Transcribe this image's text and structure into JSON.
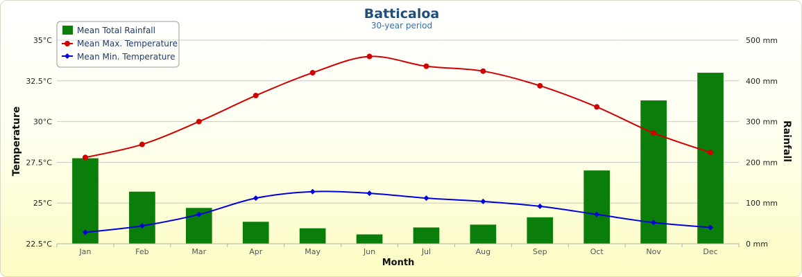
{
  "chart_data": {
    "type": "bar",
    "title": "Batticaloa",
    "subtitle": "30-year period",
    "xlabel": "Month",
    "ylabel_left": "Temperature",
    "ylabel_right": "Rainfall",
    "categories": [
      "Jan",
      "Feb",
      "Mar",
      "Apr",
      "May",
      "Jun",
      "Jul",
      "Aug",
      "Sep",
      "Oct",
      "Nov",
      "Dec"
    ],
    "y_left": {
      "lim": [
        22.5,
        35
      ],
      "ticks": [
        "22.5°C",
        "25°C",
        "27.5°C",
        "30°C",
        "32.5°C",
        "35°C"
      ],
      "tick_values": [
        22.5,
        25,
        27.5,
        30,
        32.5,
        35
      ]
    },
    "y_right": {
      "lim": [
        0,
        500
      ],
      "ticks": [
        "0 mm",
        "100 mm",
        "200 mm",
        "300 mm",
        "400 mm",
        "500 mm"
      ],
      "tick_values": [
        0,
        100,
        200,
        300,
        400,
        500
      ]
    },
    "grid": true,
    "legend_position": "top-left",
    "series": [
      {
        "name": "Mean Total Rainfall",
        "type": "bar",
        "axis": "right",
        "color": "#0a7d0a",
        "values": [
          210,
          128,
          88,
          54,
          38,
          23,
          40,
          47,
          65,
          180,
          352,
          420
        ]
      },
      {
        "name": "Mean Max. Temperature",
        "type": "line",
        "axis": "left",
        "color": "#d00000",
        "marker": "circle",
        "values": [
          27.8,
          28.6,
          30.0,
          31.6,
          33.0,
          34.0,
          33.4,
          33.1,
          32.2,
          30.9,
          29.3,
          28.1
        ]
      },
      {
        "name": "Mean Min. Temperature",
        "type": "line",
        "axis": "left",
        "color": "#0000dd",
        "marker": "diamond",
        "values": [
          23.2,
          23.6,
          24.3,
          25.3,
          25.7,
          25.6,
          25.3,
          25.1,
          24.8,
          24.3,
          23.8,
          23.5
        ]
      }
    ]
  }
}
